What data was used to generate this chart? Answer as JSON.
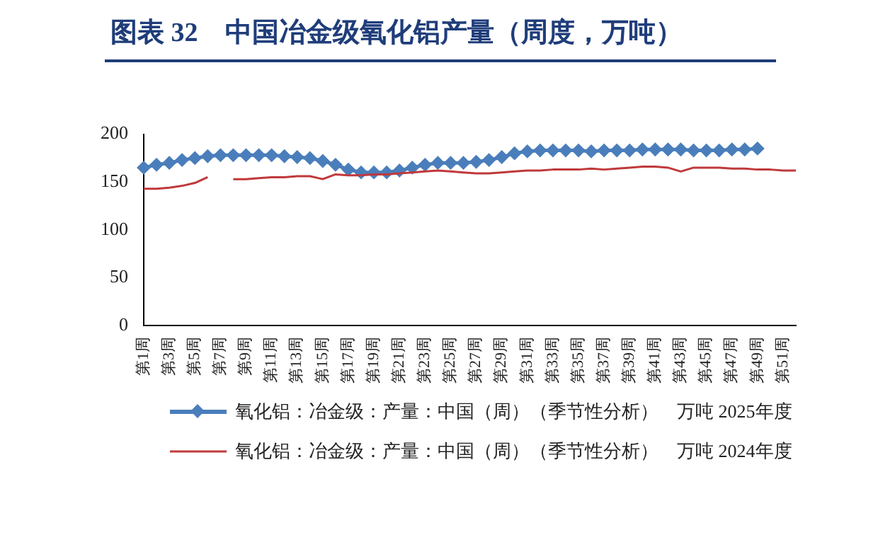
{
  "chart_data": {
    "type": "line",
    "title": "图表 32　中国冶金级氧化铝产量（周度，万吨）",
    "categories": [
      "第1周",
      null,
      "第3周",
      null,
      "第5周",
      null,
      "第7周",
      null,
      "第9周",
      null,
      "第11周",
      null,
      "第13周",
      null,
      "第15周",
      null,
      "第17周",
      null,
      "第19周",
      null,
      "第21周",
      null,
      "第23周",
      null,
      "第25周",
      null,
      "第27周",
      null,
      "第29周",
      null,
      "第31周",
      null,
      "第33周",
      null,
      "第35周",
      null,
      "第37周",
      null,
      "第39周",
      null,
      "第41周",
      null,
      "第43周",
      null,
      "第45周",
      null,
      "第47周",
      null,
      "第49周",
      null,
      "第51周",
      null
    ],
    "series": [
      {
        "name": "氧化铝：冶金级：产量：中国（周）（季节性分析）　万吨 2025年度",
        "color": "#4a7ebb",
        "marker": "diamond",
        "values": [
          165,
          168,
          170,
          173,
          175,
          177,
          178,
          178,
          178,
          178,
          178,
          177,
          176,
          175,
          172,
          168,
          163,
          160,
          160,
          160,
          162,
          165,
          168,
          170,
          170,
          170,
          171,
          173,
          176,
          180,
          182,
          183,
          183,
          183,
          183,
          182,
          183,
          183,
          183,
          184,
          184,
          184,
          184,
          183,
          183,
          183,
          184,
          184,
          185,
          null,
          null,
          null
        ]
      },
      {
        "name": "氧化铝：冶金级：产量：中国（周）（季节性分析）　万吨 2024年度",
        "color": "#c0393b",
        "marker": "none",
        "values": [
          143,
          143,
          144,
          146,
          149,
          155,
          null,
          153,
          153,
          154,
          155,
          155,
          156,
          156,
          153,
          158,
          157,
          157,
          158,
          158,
          159,
          160,
          161,
          162,
          161,
          160,
          159,
          159,
          160,
          161,
          162,
          162,
          163,
          163,
          163,
          164,
          163,
          164,
          165,
          166,
          166,
          165,
          161,
          165,
          165,
          165,
          164,
          164,
          163,
          163,
          162,
          162
        ]
      }
    ],
    "ylim": [
      0,
      200
    ],
    "yticks": [
      0,
      50,
      100,
      150,
      200
    ],
    "grid": false,
    "legend": "bottom"
  }
}
